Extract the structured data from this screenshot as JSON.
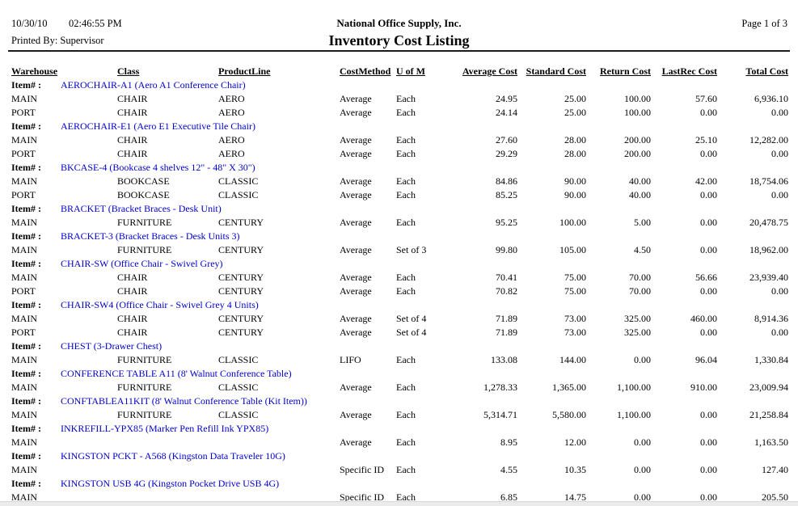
{
  "header": {
    "date": "10/30/10",
    "time": "02:46:55 PM",
    "printed_by": "Printed By: Supervisor",
    "company": "National Office Supply, Inc.",
    "title": "Inventory Cost Listing",
    "page": "Page 1 of 3"
  },
  "colors": {
    "item_link": "#0000cc",
    "rule": "#1a1a1a"
  },
  "table": {
    "item_label": "Item# :",
    "columns": [
      "Warehouse",
      "Class",
      "ProductLine",
      "CostMethod",
      "U of M",
      "Average Cost",
      "Standard Cost",
      "Return Cost",
      "LastRec Cost",
      "Total Cost"
    ],
    "groups": [
      {
        "item": "AEROCHAIR-A1 (Aero A1 Conference Chair)",
        "rows": [
          [
            "MAIN",
            "CHAIR",
            "AERO",
            "Average",
            "Each",
            "24.95",
            "25.00",
            "100.00",
            "57.60",
            "6,936.10"
          ],
          [
            "PORT",
            "CHAIR",
            "AERO",
            "Average",
            "Each",
            "24.14",
            "25.00",
            "100.00",
            "0.00",
            "0.00"
          ]
        ]
      },
      {
        "item": "AEROCHAIR-E1 (Aero E1 Executive Tile Chair)",
        "rows": [
          [
            "MAIN",
            "CHAIR",
            "AERO",
            "Average",
            "Each",
            "27.60",
            "28.00",
            "200.00",
            "25.10",
            "12,282.00"
          ],
          [
            "PORT",
            "CHAIR",
            "AERO",
            "Average",
            "Each",
            "29.29",
            "28.00",
            "200.00",
            "0.00",
            "0.00"
          ]
        ]
      },
      {
        "item": "BKCASE-4 (Bookcase 4 shelves 12\" - 48\" X 30\")",
        "rows": [
          [
            "MAIN",
            "BOOKCASE",
            "CLASSIC",
            "Average",
            "Each",
            "84.86",
            "90.00",
            "40.00",
            "42.00",
            "18,754.06"
          ],
          [
            "PORT",
            "BOOKCASE",
            "CLASSIC",
            "Average",
            "Each",
            "85.25",
            "90.00",
            "40.00",
            "0.00",
            "0.00"
          ]
        ]
      },
      {
        "item": "BRACKET (Bracket Braces - Desk Unit)",
        "rows": [
          [
            "MAIN",
            "FURNITURE",
            "CENTURY",
            "Average",
            "Each",
            "95.25",
            "100.00",
            "5.00",
            "0.00",
            "20,478.75"
          ]
        ]
      },
      {
        "item": "BRACKET-3 (Bracket Braces - Desk Units 3)",
        "rows": [
          [
            "MAIN",
            "FURNITURE",
            "CENTURY",
            "Average",
            "Set of 3",
            "99.80",
            "105.00",
            "4.50",
            "0.00",
            "18,962.00"
          ]
        ]
      },
      {
        "item": "CHAIR-SW (Office Chair - Swivel Grey)",
        "rows": [
          [
            "MAIN",
            "CHAIR",
            "CENTURY",
            "Average",
            "Each",
            "70.41",
            "75.00",
            "70.00",
            "56.66",
            "23,939.40"
          ],
          [
            "PORT",
            "CHAIR",
            "CENTURY",
            "Average",
            "Each",
            "70.82",
            "75.00",
            "70.00",
            "0.00",
            "0.00"
          ]
        ]
      },
      {
        "item": "CHAIR-SW4 (Office Chair - Swivel Grey 4 Units)",
        "rows": [
          [
            "MAIN",
            "CHAIR",
            "CENTURY",
            "Average",
            "Set of 4",
            "71.89",
            "73.00",
            "325.00",
            "460.00",
            "8,914.36"
          ],
          [
            "PORT",
            "CHAIR",
            "CENTURY",
            "Average",
            "Set of 4",
            "71.89",
            "73.00",
            "325.00",
            "0.00",
            "0.00"
          ]
        ]
      },
      {
        "item": "CHEST (3-Drawer Chest)",
        "rows": [
          [
            "MAIN",
            "FURNITURE",
            "CLASSIC",
            "LIFO",
            "Each",
            "133.08",
            "144.00",
            "0.00",
            "96.04",
            "1,330.84"
          ]
        ]
      },
      {
        "item": "CONFERENCE TABLE A11 (8' Walnut Conference Table)",
        "rows": [
          [
            "MAIN",
            "FURNITURE",
            "CLASSIC",
            "Average",
            "Each",
            "1,278.33",
            "1,365.00",
            "1,100.00",
            "910.00",
            "23,009.94"
          ]
        ]
      },
      {
        "item": "CONFTABLEA11KIT (8' Walnut Conference Table (Kit Item))",
        "rows": [
          [
            "MAIN",
            "FURNITURE",
            "CLASSIC",
            "Average",
            "Each",
            "5,314.71",
            "5,580.00",
            "1,100.00",
            "0.00",
            "21,258.84"
          ]
        ]
      },
      {
        "item": "INKREFILL-YPX85 (Marker Pen Refill Ink YPX85)",
        "rows": [
          [
            "MAIN",
            "",
            "",
            "Average",
            "Each",
            "8.95",
            "12.00",
            "0.00",
            "0.00",
            "1,163.50"
          ]
        ]
      },
      {
        "item": "KINGSTON PCKT - A568 (Kingston Data Traveler 10G)",
        "rows": [
          [
            "MAIN",
            "",
            "",
            "Specific ID",
            "Each",
            "4.55",
            "10.35",
            "0.00",
            "0.00",
            "127.40"
          ]
        ]
      },
      {
        "item": "KINGSTON USB 4G (Kingston Pocket Drive USB 4G)",
        "rows": [
          [
            "MAIN",
            "",
            "",
            "Specific ID",
            "Each",
            "6.85",
            "14.75",
            "0.00",
            "0.00",
            "205.50"
          ]
        ]
      }
    ]
  }
}
